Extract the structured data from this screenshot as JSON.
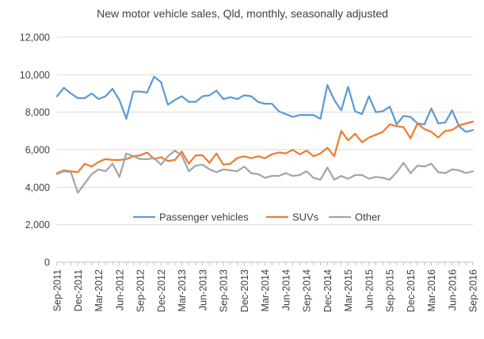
{
  "chart_data": {
    "type": "line",
    "title": "New motor vehicle sales, Qld, monthly, seasonally adjusted",
    "xlabel": "",
    "ylabel": "",
    "ylim": [
      0,
      12000
    ],
    "yticks": [
      "0",
      "2,000",
      "4,000",
      "6,000",
      "8,000",
      "10,000",
      "12,000"
    ],
    "ytick_values": [
      0,
      2000,
      4000,
      6000,
      8000,
      10000,
      12000
    ],
    "grid": true,
    "legend_position": "bottom-center",
    "x_start": "Sep-2011",
    "x_tick_labels": [
      "Sep-2011",
      "Dec-2011",
      "Mar-2012",
      "Jun-2012",
      "Sep-2012",
      "Dec-2012",
      "Mar-2013",
      "Jun-2013",
      "Sep-2013",
      "Dec-2013",
      "Mar-2014",
      "Jun-2014",
      "Sep-2014",
      "Dec-2014",
      "Mar-2015",
      "Jun-2015",
      "Sep-2015",
      "Dec-2015",
      "Mar-2016",
      "Jun-2016",
      "Sep-2016"
    ],
    "series": [
      {
        "name": "Passenger vehicles",
        "color": "#5B9BD5",
        "values": [
          8850,
          9300,
          9000,
          8750,
          8750,
          9000,
          8700,
          8850,
          9250,
          8650,
          7650,
          9100,
          9100,
          9050,
          9900,
          9600,
          8400,
          8650,
          8850,
          8550,
          8550,
          8850,
          8900,
          9150,
          8700,
          8800,
          8700,
          8900,
          8850,
          8550,
          8450,
          8450,
          8050,
          7900,
          7750,
          7850,
          7850,
          7850,
          7650,
          9450,
          8650,
          8100,
          9350,
          8050,
          7900,
          8850,
          8000,
          8050,
          8300,
          7350,
          7800,
          7750,
          7400,
          7350,
          8200,
          7400,
          7450,
          8100,
          7250,
          6950,
          7050
        ]
      },
      {
        "name": "SUVs",
        "color": "#ED7D31",
        "values": [
          4750,
          4900,
          4850,
          4800,
          5250,
          5100,
          5350,
          5500,
          5450,
          5450,
          5500,
          5650,
          5700,
          5850,
          5500,
          5600,
          5400,
          5450,
          5900,
          5250,
          5700,
          5700,
          5300,
          5800,
          5200,
          5250,
          5550,
          5650,
          5550,
          5650,
          5550,
          5750,
          5850,
          5800,
          6000,
          5750,
          5950,
          5650,
          5800,
          6100,
          5650,
          7000,
          6500,
          6850,
          6400,
          6650,
          6800,
          6950,
          7350,
          7250,
          7200,
          6600,
          7400,
          7100,
          6950,
          6650,
          7000,
          7050,
          7300,
          7400,
          7500
        ]
      },
      {
        "name": "Other",
        "color": "#A5A5A5",
        "values": [
          4700,
          4850,
          4800,
          3700,
          4200,
          4700,
          4950,
          4850,
          5250,
          4550,
          5800,
          5650,
          5500,
          5500,
          5550,
          5200,
          5650,
          5950,
          5700,
          4850,
          5150,
          5200,
          4950,
          4800,
          4950,
          4900,
          4850,
          5100,
          4750,
          4700,
          4500,
          4600,
          4600,
          4750,
          4600,
          4650,
          4850,
          4500,
          4400,
          5050,
          4400,
          4600,
          4450,
          4650,
          4650,
          4450,
          4550,
          4500,
          4400,
          4800,
          5300,
          4750,
          5150,
          5100,
          5250,
          4800,
          4750,
          4950,
          4900,
          4750,
          4850
        ]
      }
    ]
  }
}
